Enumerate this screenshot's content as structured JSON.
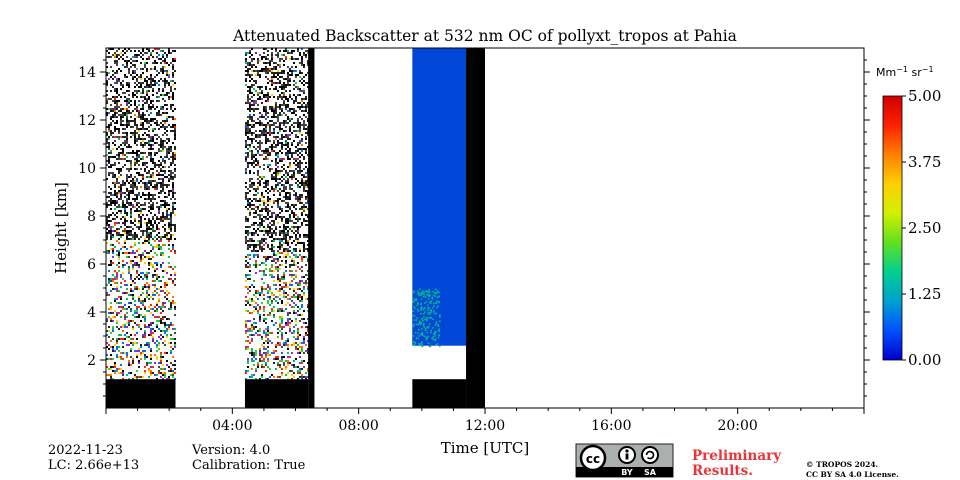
{
  "chart_data": {
    "type": "heatmap",
    "title": "Attenuated Backscatter at 532 nm OC of pollyxt_tropos at Pahia",
    "xlabel": "Time [UTC]",
    "ylabel": "Height [km]",
    "xlim_hours": [
      0,
      24
    ],
    "ylim_km": [
      0,
      15
    ],
    "x_ticks": [
      {
        "hour": 4,
        "label": "04:00"
      },
      {
        "hour": 8,
        "label": "08:00"
      },
      {
        "hour": 12,
        "label": "12:00"
      },
      {
        "hour": 16,
        "label": "16:00"
      },
      {
        "hour": 20,
        "label": "20:00"
      }
    ],
    "y_ticks": [
      {
        "value": 2,
        "label": "2"
      },
      {
        "value": 4,
        "label": "4"
      },
      {
        "value": 6,
        "label": "6"
      },
      {
        "value": 8,
        "label": "8"
      },
      {
        "value": 10,
        "label": "10"
      },
      {
        "value": 12,
        "label": "12"
      },
      {
        "value": 14,
        "label": "14"
      }
    ],
    "colorbar": {
      "unit_main": "Mm",
      "unit_exp1": "−1",
      "unit_mid": " sr",
      "unit_exp2": "−1",
      "min": 0.0,
      "max": 5.0,
      "ticks": [
        {
          "value": 0.0,
          "label": "0.00"
        },
        {
          "value": 1.25,
          "label": "1.25"
        },
        {
          "value": 2.5,
          "label": "2.50"
        },
        {
          "value": 3.75,
          "label": "3.75"
        },
        {
          "value": 5.0,
          "label": "5.00"
        }
      ],
      "colors": [
        "#0000cd",
        "#0050ff",
        "#00a0d0",
        "#00d090",
        "#60e020",
        "#d0f000",
        "#ffd000",
        "#ff8000",
        "#ff2000",
        "#d00000"
      ]
    },
    "segments": [
      {
        "name": "noisy-profile-1",
        "start_hour": 0.0,
        "end_hour": 2.2,
        "kind": "noisy",
        "black_below_km": 1.2,
        "aerosol_top_km": 7.0
      },
      {
        "name": "noisy-profile-2",
        "start_hour": 4.4,
        "end_hour": 6.4,
        "kind": "noisy",
        "black_below_km": 1.2,
        "aerosol_top_km": 6.5
      },
      {
        "name": "blank-gap",
        "start_hour": 6.4,
        "end_hour": 6.6,
        "kind": "black",
        "black_below_km": 15
      },
      {
        "name": "clean-profile",
        "start_hour": 9.7,
        "end_hour": 11.4,
        "kind": "clean",
        "black_below_km": 1.2,
        "signal_bottom_km": 2.6,
        "value": 0.1
      },
      {
        "name": "instrument-off",
        "start_hour": 11.4,
        "end_hour": 12.0,
        "kind": "black",
        "black_below_km": 15
      }
    ],
    "noise_colors": [
      "#000000",
      "#222222",
      "#444444",
      "#00c060",
      "#30d040",
      "#0070ff",
      "#ffd000",
      "#ff7000",
      "#ff2a00",
      "#8a2be2"
    ]
  },
  "footer": {
    "date": "2022-11-23",
    "lc": "LC: 2.66e+13",
    "version": "Version: 4.0",
    "calibration": "Calibration: True",
    "preliminary_line1": "Preliminary",
    "preliminary_line2": "Results.",
    "copyright_line1": "© TROPOS 2024.",
    "copyright_line2": "CC BY SA 4.0 License.",
    "license_by": "BY",
    "license_sa": "SA"
  }
}
